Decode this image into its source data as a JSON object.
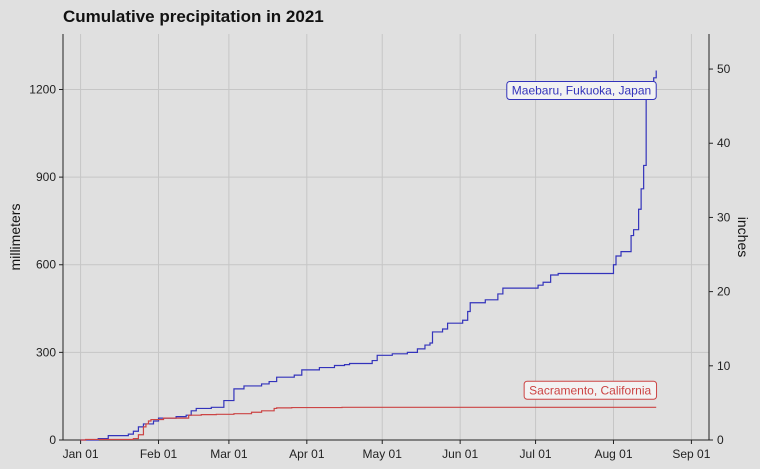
{
  "chart_data": {
    "type": "line",
    "title": "Cumulative precipitation in 2021",
    "xlabel": "",
    "ylabel": "millimeters",
    "ylabel_right": "inches",
    "xlim": [
      "2020-12-25",
      "2021-09-08"
    ],
    "ylim": [
      0,
      1390
    ],
    "x_ticks": [
      {
        "date": "2021-01-01",
        "label": "Jan 01"
      },
      {
        "date": "2021-02-01",
        "label": "Feb 01"
      },
      {
        "date": "2021-03-01",
        "label": "Mar 01"
      },
      {
        "date": "2021-04-01",
        "label": "Apr 01"
      },
      {
        "date": "2021-05-01",
        "label": "May 01"
      },
      {
        "date": "2021-06-01",
        "label": "Jun 01"
      },
      {
        "date": "2021-07-01",
        "label": "Jul 01"
      },
      {
        "date": "2021-08-01",
        "label": "Aug 01"
      },
      {
        "date": "2021-09-01",
        "label": "Sep 01"
      }
    ],
    "y_ticks": [
      0,
      300,
      600,
      900,
      1200
    ],
    "y_ticks_right": [
      0,
      10,
      20,
      30,
      40,
      50
    ],
    "grid": true,
    "series": [
      {
        "name": "Maebaru, Fukuoka, Japan",
        "color": "#3333bb",
        "points": [
          [
            "2021-01-01",
            0
          ],
          [
            "2021-01-08",
            5
          ],
          [
            "2021-01-12",
            15
          ],
          [
            "2021-01-20",
            20
          ],
          [
            "2021-01-22",
            30
          ],
          [
            "2021-01-24",
            45
          ],
          [
            "2021-01-26",
            55
          ],
          [
            "2021-01-30",
            65
          ],
          [
            "2021-02-01",
            75
          ],
          [
            "2021-02-08",
            80
          ],
          [
            "2021-02-12",
            85
          ],
          [
            "2021-02-14",
            100
          ],
          [
            "2021-02-16",
            108
          ],
          [
            "2021-02-22",
            112
          ],
          [
            "2021-02-27",
            135
          ],
          [
            "2021-03-03",
            175
          ],
          [
            "2021-03-07",
            185
          ],
          [
            "2021-03-14",
            192
          ],
          [
            "2021-03-17",
            200
          ],
          [
            "2021-03-20",
            215
          ],
          [
            "2021-03-27",
            222
          ],
          [
            "2021-03-30",
            240
          ],
          [
            "2021-04-06",
            248
          ],
          [
            "2021-04-12",
            255
          ],
          [
            "2021-04-16",
            258
          ],
          [
            "2021-04-18",
            262
          ],
          [
            "2021-04-27",
            272
          ],
          [
            "2021-04-29",
            290
          ],
          [
            "2021-05-05",
            295
          ],
          [
            "2021-05-11",
            300
          ],
          [
            "2021-05-15",
            312
          ],
          [
            "2021-05-18",
            325
          ],
          [
            "2021-05-20",
            332
          ],
          [
            "2021-05-21",
            370
          ],
          [
            "2021-05-25",
            380
          ],
          [
            "2021-05-27",
            400
          ],
          [
            "2021-06-02",
            410
          ],
          [
            "2021-06-04",
            440
          ],
          [
            "2021-06-05",
            470
          ],
          [
            "2021-06-11",
            480
          ],
          [
            "2021-06-16",
            500
          ],
          [
            "2021-06-18",
            520
          ],
          [
            "2021-07-02",
            530
          ],
          [
            "2021-07-04",
            540
          ],
          [
            "2021-07-07",
            565
          ],
          [
            "2021-07-10",
            570
          ],
          [
            "2021-07-31",
            570
          ],
          [
            "2021-08-01",
            600
          ],
          [
            "2021-08-02",
            630
          ],
          [
            "2021-08-04",
            645
          ],
          [
            "2021-08-08",
            700
          ],
          [
            "2021-08-09",
            720
          ],
          [
            "2021-08-11",
            790
          ],
          [
            "2021-08-12",
            860
          ],
          [
            "2021-08-13",
            940
          ],
          [
            "2021-08-14",
            1170
          ],
          [
            "2021-08-16",
            1190
          ],
          [
            "2021-08-17",
            1240
          ],
          [
            "2021-08-18",
            1265
          ]
        ]
      },
      {
        "name": "Sacramento, California",
        "color": "#cc4444",
        "points": [
          [
            "2021-01-01",
            0
          ],
          [
            "2021-01-03",
            2
          ],
          [
            "2021-01-22",
            5
          ],
          [
            "2021-01-24",
            18
          ],
          [
            "2021-01-26",
            45
          ],
          [
            "2021-01-27",
            55
          ],
          [
            "2021-01-28",
            65
          ],
          [
            "2021-01-29",
            70
          ],
          [
            "2021-02-03",
            75
          ],
          [
            "2021-02-13",
            85
          ],
          [
            "2021-02-18",
            87
          ],
          [
            "2021-02-24",
            88
          ],
          [
            "2021-03-03",
            90
          ],
          [
            "2021-03-10",
            95
          ],
          [
            "2021-03-14",
            100
          ],
          [
            "2021-03-19",
            108
          ],
          [
            "2021-03-20",
            110
          ],
          [
            "2021-03-26",
            111
          ],
          [
            "2021-04-15",
            112
          ],
          [
            "2021-05-01",
            112
          ],
          [
            "2021-06-01",
            112
          ],
          [
            "2021-07-01",
            112
          ],
          [
            "2021-08-01",
            112
          ],
          [
            "2021-08-18",
            112
          ]
        ]
      }
    ]
  }
}
